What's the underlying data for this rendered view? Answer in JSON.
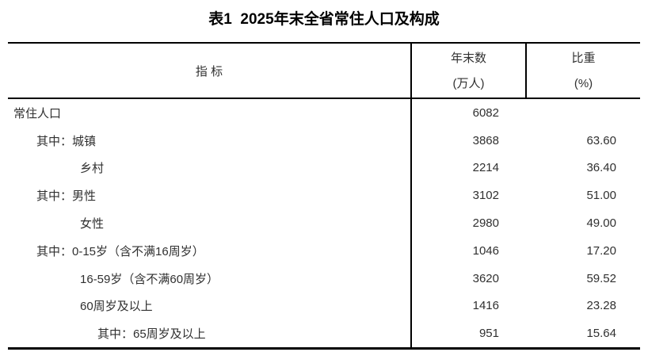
{
  "title": "表1  2025年末全省常住人口及构成",
  "colors": {
    "text": "#303030",
    "title_text": "#000000",
    "border": "#000000",
    "background": "#ffffff"
  },
  "table": {
    "header": {
      "indicator": "指 标",
      "value_line1": "年末数",
      "value_line2": "(万人)",
      "share_line1": "比重",
      "share_line2": "(%)"
    },
    "rows": [
      {
        "label": "常住人口",
        "value": "6082",
        "share": ""
      },
      {
        "label": "其中：城镇",
        "value": "3868",
        "share": "63.60"
      },
      {
        "label": "乡村",
        "value": "2214",
        "share": "36.40"
      },
      {
        "label": "其中：男性",
        "value": "3102",
        "share": "51.00"
      },
      {
        "label": "女性",
        "value": "2980",
        "share": "49.00"
      },
      {
        "label": "其中：0-15岁（含不满16周岁）",
        "value": "1046",
        "share": "17.20"
      },
      {
        "label": "16-59岁（含不满60周岁）",
        "value": "3620",
        "share": "59.52"
      },
      {
        "label": "60周岁及以上",
        "value": "1416",
        "share": "23.28"
      },
      {
        "label": "其中：65周岁及以上",
        "value": "951",
        "share": "15.64"
      }
    ]
  }
}
